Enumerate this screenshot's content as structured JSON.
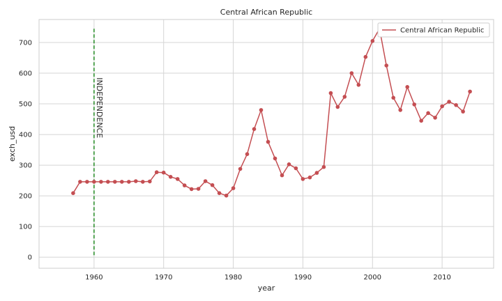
{
  "chart_data": {
    "type": "line",
    "title": "Central African Republic",
    "xlabel": "year",
    "ylabel": "exch_usd",
    "xlim": [
      1952.1,
      2017.4
    ],
    "ylim": [
      -36,
      775
    ],
    "xticks": [
      1960,
      1970,
      1980,
      1990,
      2000,
      2010
    ],
    "yticks": [
      0,
      100,
      200,
      300,
      400,
      500,
      600,
      700
    ],
    "grid": true,
    "legend": "top-right",
    "series": [
      {
        "name": "Central African Republic",
        "color": "#c44e52",
        "marker": "circle",
        "x": [
          1957,
          1958,
          1959,
          1960,
          1961,
          1962,
          1963,
          1964,
          1965,
          1966,
          1967,
          1968,
          1969,
          1970,
          1971,
          1972,
          1973,
          1974,
          1975,
          1976,
          1977,
          1978,
          1979,
          1980,
          1981,
          1982,
          1983,
          1984,
          1985,
          1986,
          1987,
          1988,
          1989,
          1990,
          1991,
          1992,
          1993,
          1994,
          1995,
          1996,
          1997,
          1998,
          1999,
          2000,
          2001,
          2002,
          2003,
          2004,
          2005,
          2006,
          2007,
          2008,
          2009,
          2010,
          2011,
          2012,
          2013,
          2014
        ],
        "y": [
          209,
          246,
          246,
          246,
          246,
          246,
          246,
          246,
          246,
          248,
          246,
          247,
          277,
          276,
          262,
          255,
          234,
          222,
          223,
          248,
          235,
          209,
          201,
          225,
          288,
          336,
          418,
          480,
          376,
          322,
          267,
          303,
          290,
          255,
          260,
          275,
          294,
          535,
          490,
          523,
          600,
          562,
          653,
          705,
          745,
          625,
          520,
          480,
          555,
          498,
          445,
          470,
          455,
          492,
          507,
          496,
          475,
          540
        ]
      }
    ],
    "annotations": [
      {
        "text": "INDEPENDENCE",
        "x": 1960,
        "y_top": 745,
        "y_bottom": 0,
        "style": "dashed-vertical-line",
        "color": "#228b22"
      }
    ]
  }
}
